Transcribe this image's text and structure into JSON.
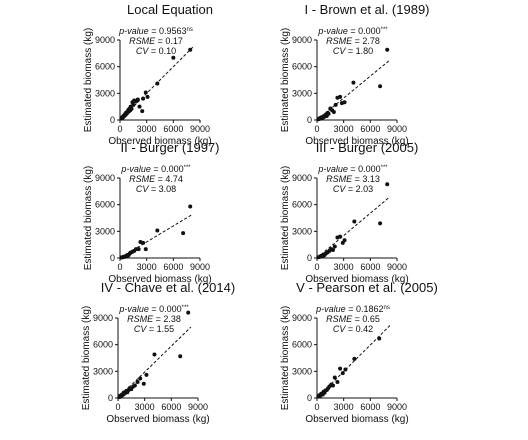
{
  "chart_data": [
    {
      "type": "scatter",
      "title": "Local Equation",
      "xlabel": "Observed biomass (kg)",
      "ylabel": "Estimated biomass (kg)",
      "xlim": [
        0,
        9000
      ],
      "ylim": [
        0,
        9000
      ],
      "xticks": [
        "0",
        "3000",
        "6000",
        "9000"
      ],
      "yticks": [
        "0",
        "3000",
        "6000",
        "9000"
      ],
      "trendline": "dashed 1:1",
      "stats": [
        {
          "name": "p-value",
          "eq": " = ",
          "value": "0.9563",
          "sup": "ns"
        },
        {
          "name": "RSME",
          "eq": " = ",
          "value": "0.17",
          "sup": ""
        },
        {
          "name": "CV",
          "eq": " = ",
          "value": "0.10",
          "sup": ""
        }
      ],
      "x": [
        150,
        250,
        300,
        380,
        420,
        500,
        550,
        600,
        650,
        700,
        780,
        850,
        900,
        950,
        1000,
        1100,
        1150,
        1200,
        1300,
        1400,
        1500,
        1600,
        1800,
        2000,
        2200,
        2500,
        2600,
        2900,
        3100,
        4200,
        6000,
        7900
      ],
      "y": [
        150,
        300,
        250,
        450,
        400,
        550,
        500,
        700,
        600,
        850,
        750,
        900,
        1000,
        1150,
        950,
        1300,
        1100,
        1500,
        1250,
        2000,
        1700,
        2200,
        2100,
        2300,
        1500,
        1000,
        2400,
        3100,
        2600,
        4100,
        7000,
        7900
      ]
    },
    {
      "type": "scatter",
      "title": "I - Brown et al. (1989)",
      "xlabel": "Observed biomass (kg)",
      "ylabel": "Estimated biomass (kg)",
      "xlim": [
        0,
        9000
      ],
      "ylim": [
        0,
        9000
      ],
      "xticks": [
        "0",
        "3000",
        "6000",
        "9000"
      ],
      "yticks": [
        "0",
        "3000",
        "6000",
        "9000"
      ],
      "trendline": "dashed regression",
      "stats": [
        {
          "name": "p-value",
          "eq": " = ",
          "value": "0.000",
          "sup": "***"
        },
        {
          "name": "RSME",
          "eq": " = ",
          "value": "2.78",
          "sup": ""
        },
        {
          "name": "CV",
          "eq": " = ",
          "value": "1.80",
          "sup": ""
        }
      ],
      "x": [
        150,
        250,
        300,
        400,
        500,
        600,
        700,
        800,
        900,
        1000,
        1100,
        1200,
        1300,
        1500,
        1700,
        1900,
        2100,
        2300,
        2600,
        2800,
        3100,
        4100,
        7100,
        7900
      ],
      "y": [
        80,
        150,
        120,
        250,
        300,
        200,
        400,
        350,
        500,
        600,
        450,
        800,
        700,
        1300,
        1100,
        900,
        1700,
        2500,
        2600,
        1900,
        2000,
        4200,
        3800,
        7900
      ]
    },
    {
      "type": "scatter",
      "title": "II - Burger (1997)",
      "xlabel": "Observed biomass (kg)",
      "ylabel": "Estimated biomass (kg)",
      "xlim": [
        0,
        9000
      ],
      "ylim": [
        0,
        9000
      ],
      "xticks": [
        "0",
        "3000",
        "6000",
        "9000"
      ],
      "yticks": [
        "0",
        "3000",
        "6000",
        "9000"
      ],
      "trendline": "dashed regression",
      "stats": [
        {
          "name": "p-value",
          "eq": " = ",
          "value": "0.000",
          "sup": "***"
        },
        {
          "name": "RSME",
          "eq": " = ",
          "value": "4.74",
          "sup": ""
        },
        {
          "name": "CV",
          "eq": " = ",
          "value": "3.08",
          "sup": ""
        }
      ],
      "x": [
        150,
        250,
        350,
        450,
        550,
        650,
        750,
        850,
        950,
        1100,
        1200,
        1400,
        1600,
        1800,
        2100,
        2300,
        2600,
        2900,
        4200,
        7100,
        7900
      ],
      "y": [
        50,
        80,
        100,
        150,
        120,
        200,
        250,
        350,
        300,
        500,
        600,
        700,
        800,
        1000,
        1000,
        1800,
        1700,
        1000,
        3100,
        2800,
        5800
      ]
    },
    {
      "type": "scatter",
      "title": "III - Burger (2005)",
      "xlabel": "Observed biomass (kg)",
      "ylabel": "Estimated biomass (kg)",
      "xlim": [
        0,
        9000
      ],
      "ylim": [
        0,
        9000
      ],
      "xticks": [
        "0",
        "3000",
        "6000",
        "9000"
      ],
      "yticks": [
        "0",
        "3000",
        "6000",
        "9000"
      ],
      "trendline": "dashed regression",
      "stats": [
        {
          "name": "p-value",
          "eq": " = ",
          "value": "0.000",
          "sup": "***"
        },
        {
          "name": "RSME",
          "eq": " = ",
          "value": "3.13",
          "sup": ""
        },
        {
          "name": "CV",
          "eq": " = ",
          "value": "2.03",
          "sup": ""
        }
      ],
      "x": [
        150,
        300,
        400,
        500,
        600,
        700,
        800,
        900,
        1000,
        1200,
        1400,
        1600,
        1800,
        2000,
        2300,
        2600,
        2900,
        3100,
        4200,
        7100,
        7900
      ],
      "y": [
        80,
        120,
        200,
        250,
        180,
        350,
        300,
        450,
        500,
        650,
        800,
        1000,
        900,
        1300,
        2300,
        2400,
        1700,
        2000,
        4100,
        3900,
        8300
      ]
    },
    {
      "type": "scatter",
      "title": "IV - Chave et al. (2014)",
      "xlabel": "Observed biomass (kg)",
      "ylabel": "Estimated biomass (kg)",
      "xlim": [
        0,
        9000
      ],
      "ylim": [
        0,
        9000
      ],
      "xticks": [
        "0",
        "3000",
        "6000",
        "9000"
      ],
      "yticks": [
        "0",
        "3000",
        "6000",
        "9000"
      ],
      "trendline": "dashed regression",
      "stats": [
        {
          "name": "p-value",
          "eq": " = ",
          "value": "0.000",
          "sup": "***"
        },
        {
          "name": "RSME",
          "eq": " = ",
          "value": "2.38",
          "sup": ""
        },
        {
          "name": "CV",
          "eq": " = ",
          "value": "1.55",
          "sup": ""
        }
      ],
      "x": [
        150,
        250,
        350,
        450,
        550,
        650,
        750,
        850,
        950,
        1050,
        1200,
        1300,
        1500,
        1700,
        1900,
        2200,
        2500,
        2900,
        3200,
        4100,
        7000,
        7900
      ],
      "y": [
        100,
        250,
        200,
        400,
        350,
        600,
        500,
        700,
        800,
        650,
        900,
        1100,
        1000,
        1300,
        1400,
        1800,
        2200,
        1600,
        2600,
        4900,
        4700,
        9600
      ]
    },
    {
      "type": "scatter",
      "title": "V - Pearson et al. (2005)",
      "xlabel": "Observed biomass (kg)",
      "ylabel": "Estimated biomass (kg)",
      "xlim": [
        0,
        9000
      ],
      "ylim": [
        0,
        9000
      ],
      "xticks": [
        "0",
        "3000",
        "6000",
        "9000"
      ],
      "yticks": [
        "0",
        "3000",
        "6000",
        "9000"
      ],
      "trendline": "dashed regression",
      "stats": [
        {
          "name": "p-value",
          "eq": " = ",
          "value": "0.1862",
          "sup": "ns"
        },
        {
          "name": "RSME",
          "eq": " = ",
          "value": "0.65",
          "sup": ""
        },
        {
          "name": "CV",
          "eq": " = ",
          "value": "0.42",
          "sup": ""
        }
      ],
      "x": [
        150,
        250,
        350,
        450,
        550,
        650,
        750,
        850,
        950,
        1100,
        1250,
        1400,
        1600,
        1800,
        2000,
        2300,
        2600,
        2900,
        3200,
        4200,
        7000
      ],
      "y": [
        150,
        300,
        250,
        450,
        500,
        400,
        700,
        600,
        850,
        900,
        1100,
        1300,
        1500,
        1400,
        2300,
        1800,
        3300,
        2800,
        3200,
        4400,
        6700
      ]
    }
  ]
}
